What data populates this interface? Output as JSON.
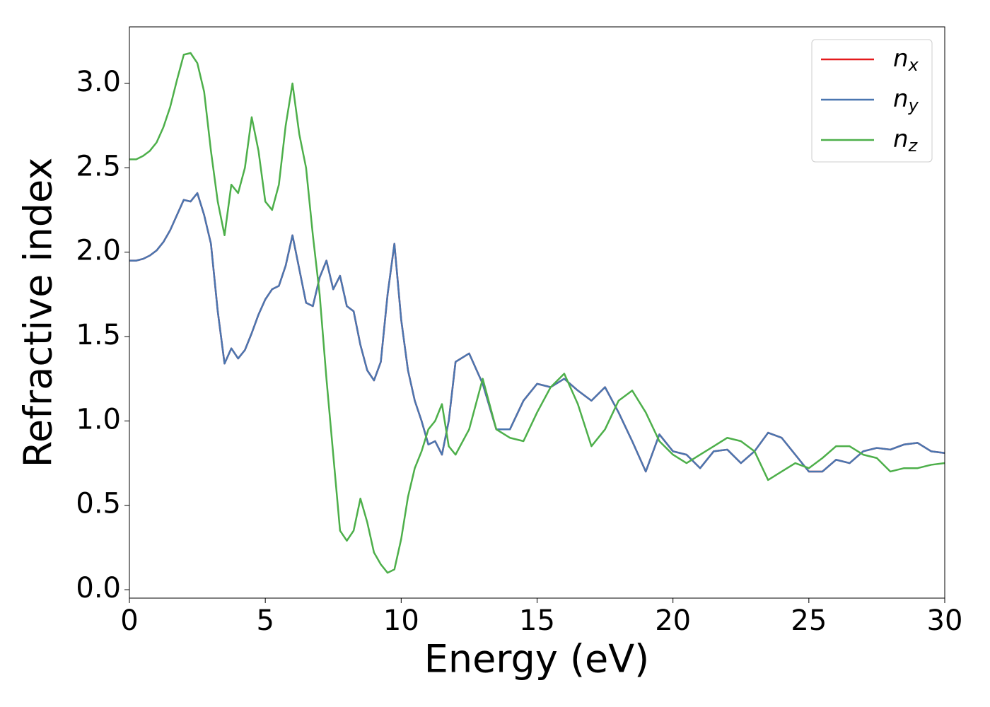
{
  "chart_data": {
    "type": "line",
    "xlabel": "Energy (eV)",
    "ylabel": "Refractive index",
    "x": [
      0,
      0.25,
      0.5,
      0.75,
      1,
      1.25,
      1.5,
      1.75,
      2,
      2.25,
      2.5,
      2.75,
      3,
      3.25,
      3.5,
      3.75,
      4,
      4.25,
      4.5,
      4.75,
      5,
      5.25,
      5.5,
      5.75,
      6,
      6.25,
      6.5,
      6.75,
      7,
      7.25,
      7.5,
      7.75,
      8,
      8.25,
      8.5,
      8.75,
      9,
      9.25,
      9.5,
      9.75,
      10,
      10.25,
      10.5,
      10.75,
      11,
      11.25,
      11.5,
      11.75,
      12,
      12.5,
      13,
      13.5,
      14,
      14.5,
      15,
      15.5,
      16,
      16.5,
      17,
      17.5,
      18,
      18.5,
      19,
      19.5,
      20,
      20.5,
      21,
      21.5,
      22,
      22.5,
      23,
      23.5,
      24,
      24.5,
      25,
      25.5,
      26,
      26.5,
      27,
      27.5,
      28,
      28.5,
      29,
      29.5,
      30
    ],
    "series": [
      {
        "name": "nx",
        "color": "#e41a1c",
        "values": [
          1.95,
          1.95,
          1.96,
          1.98,
          2.01,
          2.06,
          2.13,
          2.22,
          2.31,
          2.3,
          2.35,
          2.22,
          2.05,
          1.65,
          1.34,
          1.43,
          1.37,
          1.42,
          1.52,
          1.63,
          1.72,
          1.78,
          1.8,
          1.92,
          2.1,
          1.9,
          1.7,
          1.68,
          1.85,
          1.95,
          1.78,
          1.86,
          1.68,
          1.65,
          1.45,
          1.3,
          1.24,
          1.35,
          1.75,
          2.05,
          1.6,
          1.3,
          1.12,
          1.0,
          0.86,
          0.88,
          0.8,
          1.0,
          1.35,
          1.4,
          1.22,
          0.95,
          0.95,
          1.12,
          1.22,
          1.2,
          1.25,
          1.18,
          1.12,
          1.2,
          1.05,
          0.88,
          0.7,
          0.92,
          0.82,
          0.8,
          0.72,
          0.82,
          0.83,
          0.75,
          0.82,
          0.93,
          0.9,
          0.8,
          0.7,
          0.7,
          0.77,
          0.75,
          0.82,
          0.84,
          0.83,
          0.86,
          0.87,
          0.82,
          0.81
        ]
      },
      {
        "name": "ny",
        "color": "#4a76b0",
        "values": [
          1.95,
          1.95,
          1.96,
          1.98,
          2.01,
          2.06,
          2.13,
          2.22,
          2.31,
          2.3,
          2.35,
          2.22,
          2.05,
          1.65,
          1.34,
          1.43,
          1.37,
          1.42,
          1.52,
          1.63,
          1.72,
          1.78,
          1.8,
          1.92,
          2.1,
          1.9,
          1.7,
          1.68,
          1.85,
          1.95,
          1.78,
          1.86,
          1.68,
          1.65,
          1.45,
          1.3,
          1.24,
          1.35,
          1.75,
          2.05,
          1.6,
          1.3,
          1.12,
          1.0,
          0.86,
          0.88,
          0.8,
          1.0,
          1.35,
          1.4,
          1.22,
          0.95,
          0.95,
          1.12,
          1.22,
          1.2,
          1.25,
          1.18,
          1.12,
          1.2,
          1.05,
          0.88,
          0.7,
          0.92,
          0.82,
          0.8,
          0.72,
          0.82,
          0.83,
          0.75,
          0.82,
          0.93,
          0.9,
          0.8,
          0.7,
          0.7,
          0.77,
          0.75,
          0.82,
          0.84,
          0.83,
          0.86,
          0.87,
          0.82,
          0.81
        ]
      },
      {
        "name": "nz",
        "color": "#4daf4a",
        "values": [
          2.55,
          2.55,
          2.57,
          2.6,
          2.65,
          2.74,
          2.86,
          3.02,
          3.17,
          3.18,
          3.12,
          2.95,
          2.6,
          2.3,
          2.1,
          2.4,
          2.35,
          2.5,
          2.8,
          2.6,
          2.3,
          2.25,
          2.4,
          2.75,
          3.0,
          2.7,
          2.5,
          2.1,
          1.75,
          1.25,
          0.8,
          0.35,
          0.29,
          0.35,
          0.54,
          0.4,
          0.22,
          0.15,
          0.1,
          0.12,
          0.3,
          0.55,
          0.72,
          0.82,
          0.95,
          1.0,
          1.1,
          0.85,
          0.8,
          0.95,
          1.25,
          0.95,
          0.9,
          0.88,
          1.05,
          1.2,
          1.28,
          1.1,
          0.85,
          0.95,
          1.12,
          1.18,
          1.05,
          0.88,
          0.8,
          0.75,
          0.8,
          0.85,
          0.9,
          0.88,
          0.82,
          0.65,
          0.7,
          0.75,
          0.72,
          0.78,
          0.85,
          0.85,
          0.8,
          0.78,
          0.7,
          0.72,
          0.72,
          0.74,
          0.75
        ]
      }
    ],
    "xlim": [
      0,
      30
    ],
    "xticks": [
      0,
      5,
      10,
      15,
      20,
      25,
      30
    ],
    "ylim": [
      -0.05,
      3.335
    ],
    "yticks": [
      {
        "value": 0,
        "label": "0.0"
      },
      0.5,
      {
        "value": 1,
        "label": "1.0"
      },
      1.5,
      {
        "value": 2,
        "label": "2.0"
      },
      2.5,
      {
        "value": 3,
        "label": "3.0"
      }
    ],
    "grid": false,
    "legend": "upper right"
  }
}
